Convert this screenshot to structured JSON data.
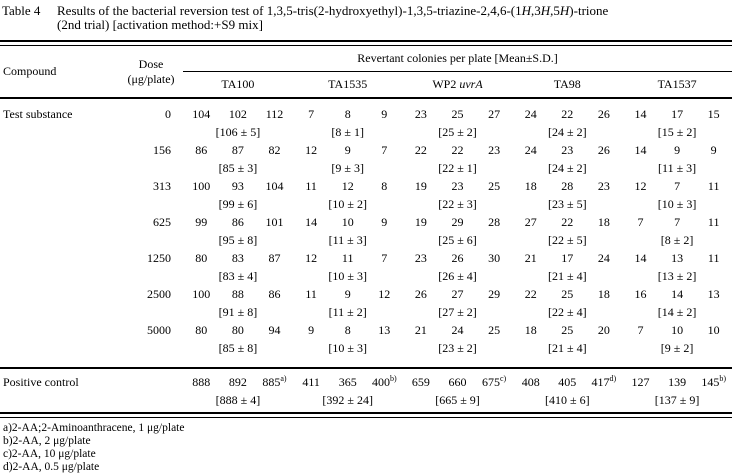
{
  "title": {
    "label": "Table 4",
    "line1": [
      {
        "t": "Results of the bacterial reversion test of 1,3,5-tris(2-hydroxyethyl)-1,3,5-triazine-2,4,6-(1"
      },
      {
        "t": "H",
        "i": true
      },
      {
        "t": ",3"
      },
      {
        "t": "H",
        "i": true
      },
      {
        "t": ",5"
      },
      {
        "t": "H",
        "i": true
      },
      {
        "t": ")-trione"
      }
    ],
    "line2": "(2nd trial) [activation method:+S9 mix]"
  },
  "table": {
    "header": {
      "compound": "Compound",
      "dose_line1": "Dose",
      "dose_line2": "(μg/plate)",
      "span_title": "Revertant colonies per plate [Mean±S.D.]",
      "strains": [
        [
          {
            "t": "TA100"
          }
        ],
        [
          {
            "t": "TA1535"
          }
        ],
        [
          {
            "t": "WP2 "
          },
          {
            "t": "uvrA",
            "i": true
          }
        ],
        [
          {
            "t": "TA98"
          }
        ],
        [
          {
            "t": "TA1537"
          }
        ]
      ]
    },
    "rows": [
      {
        "compound": "Test substance",
        "dose": "0",
        "cells": [
          {
            "values": [
              "104",
              "102",
              "112"
            ],
            "mean": "[106 ± 5]"
          },
          {
            "values": [
              "7",
              "8",
              "9"
            ],
            "mean": "[8 ± 1]"
          },
          {
            "values": [
              "23",
              "25",
              "27"
            ],
            "mean": "[25 ± 2]"
          },
          {
            "values": [
              "24",
              "22",
              "26"
            ],
            "mean": "[24 ± 2]"
          },
          {
            "values": [
              "14",
              "17",
              "15"
            ],
            "mean": "[15 ± 2]"
          }
        ]
      },
      {
        "compound": "",
        "dose": "156",
        "cells": [
          {
            "values": [
              "86",
              "87",
              "82"
            ],
            "mean": "[85 ± 3]"
          },
          {
            "values": [
              "12",
              "9",
              "7"
            ],
            "mean": "[9 ± 3]"
          },
          {
            "values": [
              "22",
              "22",
              "23"
            ],
            "mean": "[22 ± 1]"
          },
          {
            "values": [
              "24",
              "23",
              "26"
            ],
            "mean": "[24 ± 2]"
          },
          {
            "values": [
              "14",
              "9",
              "9"
            ],
            "mean": "[11 ± 3]"
          }
        ]
      },
      {
        "compound": "",
        "dose": "313",
        "cells": [
          {
            "values": [
              "100",
              "93",
              "104"
            ],
            "mean": "[99 ± 6]"
          },
          {
            "values": [
              "11",
              "12",
              "8"
            ],
            "mean": "[10 ± 2]"
          },
          {
            "values": [
              "19",
              "23",
              "25"
            ],
            "mean": "[22 ± 3]"
          },
          {
            "values": [
              "18",
              "28",
              "23"
            ],
            "mean": "[23 ± 5]"
          },
          {
            "values": [
              "12",
              "7",
              "11"
            ],
            "mean": "[10 ± 3]"
          }
        ]
      },
      {
        "compound": "",
        "dose": "625",
        "cells": [
          {
            "values": [
              "99",
              "86",
              "101"
            ],
            "mean": "[95 ± 8]"
          },
          {
            "values": [
              "14",
              "10",
              "9"
            ],
            "mean": "[11 ± 3]"
          },
          {
            "values": [
              "19",
              "29",
              "28"
            ],
            "mean": "[25 ± 6]"
          },
          {
            "values": [
              "27",
              "22",
              "18"
            ],
            "mean": "[22 ± 5]"
          },
          {
            "values": [
              "7",
              "7",
              "11"
            ],
            "mean": "[8 ± 2]"
          }
        ]
      },
      {
        "compound": "",
        "dose": "1250",
        "cells": [
          {
            "values": [
              "80",
              "83",
              "87"
            ],
            "mean": "[83 ± 4]"
          },
          {
            "values": [
              "12",
              "11",
              "7"
            ],
            "mean": "[10 ± 3]"
          },
          {
            "values": [
              "23",
              "26",
              "30"
            ],
            "mean": "[26 ± 4]"
          },
          {
            "values": [
              "21",
              "17",
              "24"
            ],
            "mean": "[21 ± 4]"
          },
          {
            "values": [
              "14",
              "13",
              "11"
            ],
            "mean": "[13 ± 2]"
          }
        ]
      },
      {
        "compound": "",
        "dose": "2500",
        "cells": [
          {
            "values": [
              "100",
              "88",
              "86"
            ],
            "mean": "[91 ± 8]"
          },
          {
            "values": [
              "11",
              "9",
              "12"
            ],
            "mean": "[11 ± 2]"
          },
          {
            "values": [
              "26",
              "27",
              "29"
            ],
            "mean": "[27 ± 2]"
          },
          {
            "values": [
              "22",
              "25",
              "18"
            ],
            "mean": "[22 ± 4]"
          },
          {
            "values": [
              "16",
              "14",
              "13"
            ],
            "mean": "[14 ± 2]"
          }
        ]
      },
      {
        "compound": "",
        "dose": "5000",
        "cells": [
          {
            "values": [
              "80",
              "80",
              "94"
            ],
            "mean": "[85 ± 8]"
          },
          {
            "values": [
              "9",
              "8",
              "13"
            ],
            "mean": "[10 ± 3]"
          },
          {
            "values": [
              "21",
              "24",
              "25"
            ],
            "mean": "[23 ± 2]"
          },
          {
            "values": [
              "18",
              "25",
              "20"
            ],
            "mean": "[21 ± 4]"
          },
          {
            "values": [
              "7",
              "10",
              "10"
            ],
            "mean": "[9 ± 2]"
          }
        ]
      }
    ],
    "positive_control": {
      "compound": "Positive control",
      "dose": "",
      "cells": [
        {
          "values": [
            "888",
            "892",
            "885"
          ],
          "sups": [
            "",
            "",
            "a)"
          ],
          "mean": "[888 ± 4]"
        },
        {
          "values": [
            "411",
            "365",
            "400"
          ],
          "sups": [
            "",
            "",
            "b)"
          ],
          "mean": "[392 ± 24]"
        },
        {
          "values": [
            "659",
            "660",
            "675"
          ],
          "sups": [
            "",
            "",
            "c)"
          ],
          "mean": "[665 ± 9]"
        },
        {
          "values": [
            "408",
            "405",
            "417"
          ],
          "sups": [
            "",
            "",
            "d)"
          ],
          "mean": "[410 ± 6]"
        },
        {
          "values": [
            "127",
            "139",
            "145"
          ],
          "sups": [
            "",
            "",
            "b)"
          ],
          "mean": "[137 ± 9]"
        }
      ]
    }
  },
  "footnotes": [
    "a)2-AA;2-Aminoanthracene, 1 μg/plate",
    "b)2-AA, 2 μg/plate",
    "c)2-AA, 10 μg/plate",
    "d)2-AA, 0.5 μg/plate"
  ]
}
